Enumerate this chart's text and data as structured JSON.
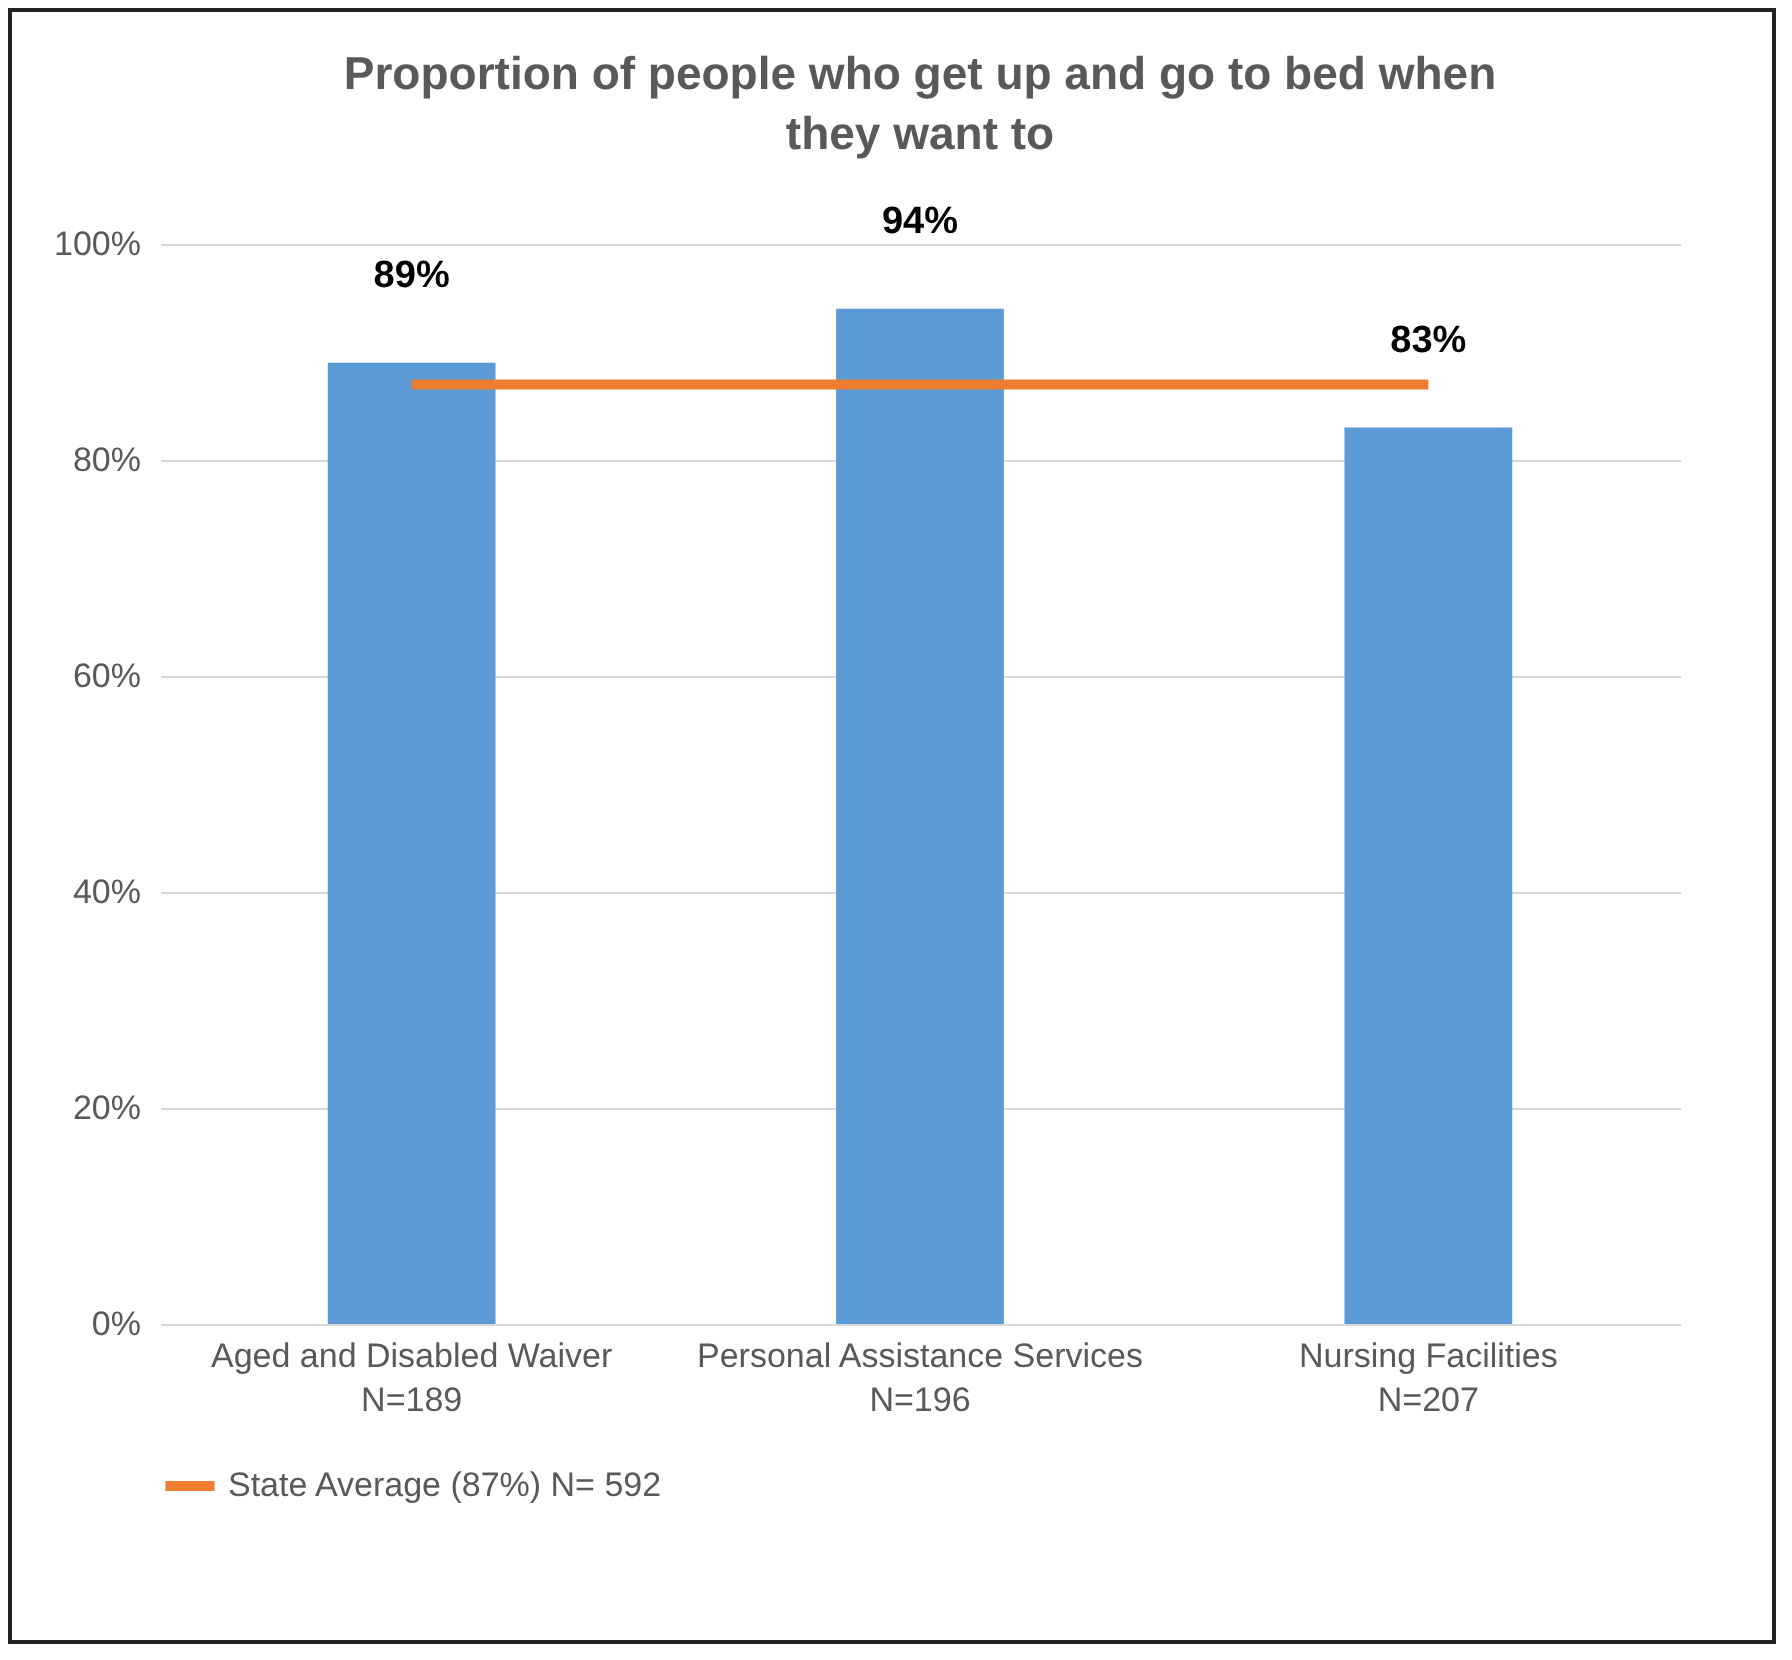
{
  "chart_data": {
    "type": "bar",
    "title": "Proportion of people who get up and go to bed when they want to",
    "categories": [
      "Aged and Disabled Waiver\nN=189",
      "Personal Assistance Services\nN=196",
      "Nursing Facilities\nN=207"
    ],
    "series": [
      {
        "color": "#5b9bd5",
        "values": [
          89,
          94,
          83
        ],
        "value_labels": [
          "89%",
          "94%",
          "83%"
        ]
      },
      {
        "type": "line",
        "name": "State Average (87%) N= 592",
        "color": "#ed7d31",
        "values": [
          87,
          87,
          87
        ]
      }
    ],
    "ylim": [
      0,
      100
    ],
    "yticks": [
      {
        "value": 0,
        "label": "0%"
      },
      {
        "value": 20,
        "label": "20%"
      },
      {
        "value": 40,
        "label": "40%"
      },
      {
        "value": 60,
        "label": "60%"
      },
      {
        "value": 80,
        "label": "80%"
      },
      {
        "value": 100,
        "label": "100%"
      }
    ],
    "grid": "y",
    "legend": "bottom"
  }
}
